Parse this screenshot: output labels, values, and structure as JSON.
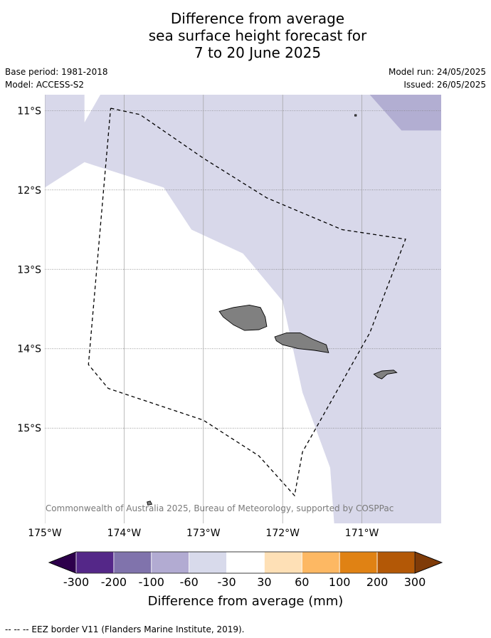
{
  "title": {
    "line1": "Difference from average",
    "line2": "sea surface height forecast for",
    "line3": "7 to 20 June 2025"
  },
  "meta": {
    "base_period": "Base period: 1981-2018",
    "model": "Model: ACCESS-S2",
    "model_run": "Model run: 24/05/2025",
    "issued": "Issued: 26/05/2025"
  },
  "map": {
    "lon_range": [
      -175,
      -170
    ],
    "lat_range": [
      -16.2,
      -10.8
    ],
    "lon_ticks": [
      {
        "value": -175,
        "label": "175°W"
      },
      {
        "value": -174,
        "label": "174°W"
      },
      {
        "value": -173,
        "label": "173°W"
      },
      {
        "value": -172,
        "label": "172°W"
      },
      {
        "value": -171,
        "label": "171°W"
      }
    ],
    "lat_ticks": [
      {
        "value": -11,
        "label": "11°S"
      },
      {
        "value": -12,
        "label": "12°S"
      },
      {
        "value": -13,
        "label": "13°S"
      },
      {
        "value": -14,
        "label": "14°S"
      },
      {
        "value": -15,
        "label": "15°S"
      }
    ],
    "anomaly_zones": [
      {
        "level": "-60 to -30",
        "color": "#d8d8ea",
        "lonlat": [
          [
            -175,
            -10.8
          ],
          [
            -174.5,
            -10.8
          ],
          [
            -174.5,
            -11.15
          ],
          [
            -174.3,
            -10.8
          ],
          [
            -170,
            -10.8
          ],
          [
            -170,
            -16.2
          ],
          [
            -171.35,
            -16.2
          ],
          [
            -171.4,
            -15.5
          ],
          [
            -171.75,
            -14.55
          ],
          [
            -172.0,
            -13.4
          ],
          [
            -172.5,
            -12.8
          ],
          [
            -173.15,
            -12.5
          ],
          [
            -173.5,
            -11.97
          ],
          [
            -174.5,
            -11.65
          ],
          [
            -175,
            -11.97
          ]
        ]
      },
      {
        "level": "-100 to -60",
        "color": "#b2aed2",
        "lonlat": [
          [
            -170.9,
            -10.8
          ],
          [
            -170,
            -10.8
          ],
          [
            -170,
            -11.25
          ],
          [
            -170.5,
            -11.25
          ]
        ]
      }
    ],
    "eez_border": [
      [
        -174.17,
        -10.97
      ],
      [
        -173.8,
        -11.05
      ],
      [
        -173.0,
        -11.6
      ],
      [
        -172.2,
        -12.1
      ],
      [
        -171.25,
        -12.5
      ],
      [
        -170.45,
        -12.62
      ],
      [
        -170.9,
        -13.8
      ],
      [
        -171.75,
        -15.3
      ],
      [
        -171.85,
        -15.85
      ],
      [
        -172.3,
        -15.35
      ],
      [
        -173.0,
        -14.9
      ],
      [
        -174.2,
        -14.5
      ],
      [
        -174.45,
        -14.2
      ],
      [
        -174.17,
        -10.97
      ]
    ],
    "islands": [
      {
        "name": "Savai'i",
        "lonlat": [
          [
            -172.8,
            -13.53
          ],
          [
            -172.62,
            -13.48
          ],
          [
            -172.42,
            -13.45
          ],
          [
            -172.28,
            -13.48
          ],
          [
            -172.22,
            -13.6
          ],
          [
            -172.2,
            -13.72
          ],
          [
            -172.3,
            -13.76
          ],
          [
            -172.48,
            -13.77
          ],
          [
            -172.62,
            -13.7
          ],
          [
            -172.75,
            -13.6
          ]
        ]
      },
      {
        "name": "Upolu",
        "lonlat": [
          [
            -172.1,
            -13.85
          ],
          [
            -171.95,
            -13.8
          ],
          [
            -171.78,
            -13.8
          ],
          [
            -171.62,
            -13.88
          ],
          [
            -171.45,
            -13.95
          ],
          [
            -171.42,
            -14.05
          ],
          [
            -171.6,
            -14.02
          ],
          [
            -171.8,
            -14.0
          ],
          [
            -172.0,
            -13.95
          ],
          [
            -172.08,
            -13.9
          ]
        ]
      },
      {
        "name": "Tutuila",
        "lonlat": [
          [
            -170.85,
            -14.32
          ],
          [
            -170.75,
            -14.28
          ],
          [
            -170.6,
            -14.27
          ],
          [
            -170.56,
            -14.3
          ],
          [
            -170.68,
            -14.32
          ],
          [
            -170.75,
            -14.38
          ],
          [
            -170.8,
            -14.36
          ]
        ]
      },
      {
        "name": "Niuafo'ou",
        "lonlat": [
          [
            -173.71,
            -15.93
          ],
          [
            -173.67,
            -15.92
          ],
          [
            -173.65,
            -15.96
          ],
          [
            -173.7,
            -15.97
          ]
        ]
      },
      {
        "name": "Swains",
        "lonlat": [
          [
            -171.09,
            -11.05
          ],
          [
            -171.07,
            -11.05
          ],
          [
            -171.07,
            -11.07
          ],
          [
            -171.09,
            -11.07
          ]
        ]
      }
    ]
  },
  "copyright": "© Commonwealth of Australia 2025, Bureau of Meteorology, supported by COSPPac",
  "colorbar": {
    "title": "Difference from average (mm)",
    "colors": [
      "#2d004b",
      "#542788",
      "#8073ac",
      "#b2abd2",
      "#d8daeb",
      "#ffffff",
      "#fee0b6",
      "#fdb863",
      "#e08214",
      "#b35806",
      "#7f3b08"
    ],
    "labels": [
      "-300",
      "-200",
      "-100",
      "-60",
      "-30",
      "30",
      "60",
      "100",
      "200",
      "300"
    ]
  },
  "footer": "--  --  -- EEZ border V11 (Flanders Marine Institute, 2019)."
}
